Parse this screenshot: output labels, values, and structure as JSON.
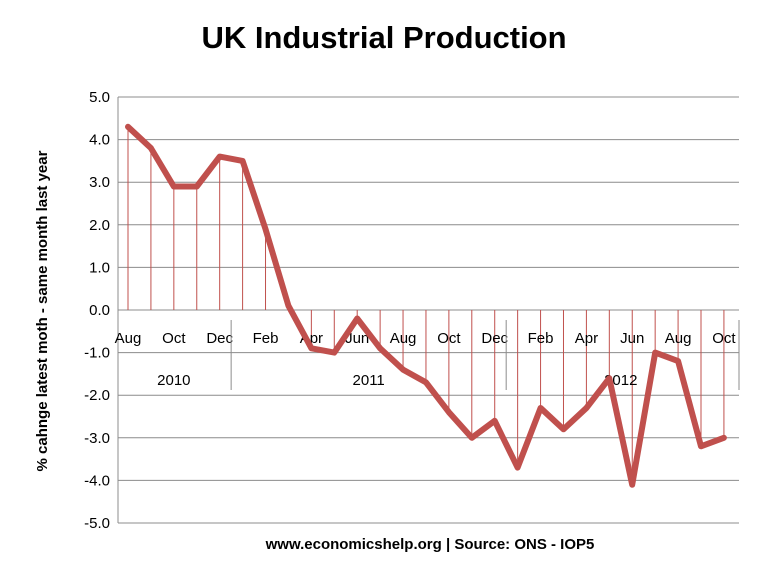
{
  "chart_data": {
    "type": "line",
    "title": "UK Industrial Production",
    "xlabel": "www.economicshelp.org | Source: ONS - IOP5",
    "ylabel": "% cahnge latest moth - same month last year",
    "ylim": [
      -5.0,
      5.0
    ],
    "yticks": [
      "5.0",
      "4.0",
      "3.0",
      "2.0",
      "1.0",
      "0.0",
      "-1.0",
      "-2.0",
      "-3.0",
      "-4.0",
      "-5.0"
    ],
    "grid": true,
    "legend": "none",
    "line_color": "#c0504d",
    "x": [
      "Aug",
      "Sep",
      "Oct",
      "Nov",
      "Dec",
      "Jan",
      "Feb",
      "Mar",
      "Apr",
      "May",
      "Jun",
      "Jul",
      "Aug",
      "Sep",
      "Oct",
      "Nov",
      "Dec",
      "Jan",
      "Feb",
      "Mar",
      "Apr",
      "May",
      "Jun",
      "Jul",
      "Aug",
      "Sep",
      "Oct"
    ],
    "x_tick_labels": [
      "Aug",
      "Oct",
      "Dec",
      "Feb",
      "Apr",
      "Jun",
      "Aug",
      "Oct",
      "Dec",
      "Feb",
      "Apr",
      "Jun",
      "Aug",
      "Oct"
    ],
    "year_groups": [
      {
        "label": "2010",
        "count": 5
      },
      {
        "label": "2011",
        "count": 12
      },
      {
        "label": "2012",
        "count": 10
      }
    ],
    "series": [
      {
        "values": [
          4.3,
          3.8,
          2.9,
          2.9,
          3.6,
          3.5,
          1.9,
          0.1,
          -0.9,
          -1.0,
          -0.2,
          -0.9,
          -1.4,
          -1.7,
          -2.4,
          -3.0,
          -2.6,
          -3.7,
          -2.3,
          -2.8,
          -2.3,
          -1.6,
          -4.1,
          -1.0,
          -1.2,
          -3.2,
          -3.0
        ]
      }
    ]
  }
}
